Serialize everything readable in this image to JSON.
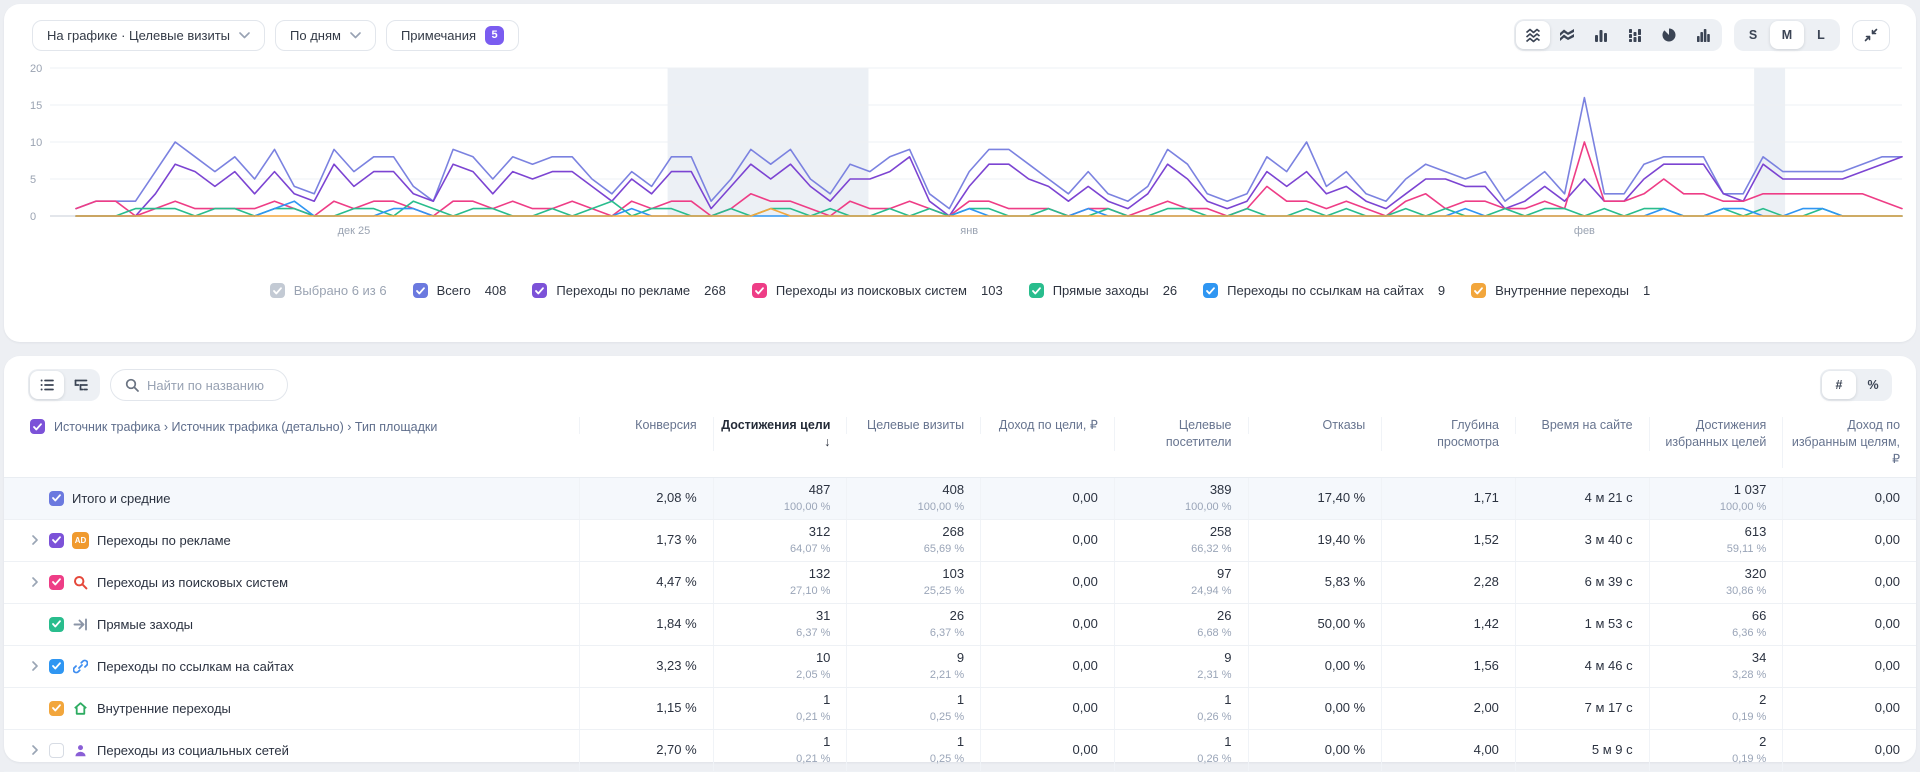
{
  "chart_controls": {
    "metric_dropdown": "На графике · Целевые визиты",
    "granularity_dropdown": "По дням",
    "notes_label": "Примечания",
    "notes_count": "5",
    "sizes": [
      "S",
      "M",
      "L"
    ],
    "size_selected": "M"
  },
  "chart_data": {
    "type": "line",
    "ylim": [
      0,
      20
    ],
    "yticks": [
      0,
      5,
      10,
      15,
      20
    ],
    "x_tick_labels": [
      {
        "label": "дек 25",
        "index": 14
      },
      {
        "label": "янв",
        "index": 45
      },
      {
        "label": "фев",
        "index": 76
      }
    ],
    "highlight_bands": [
      {
        "from_frac": 0.324,
        "to_frac": 0.434
      },
      {
        "from_frac": 0.919,
        "to_frac": 0.936
      }
    ],
    "series": [
      {
        "name": "Всего",
        "color": "#7b82e0",
        "values": [
          1,
          2,
          2,
          2,
          6,
          10,
          8,
          6,
          8,
          5,
          9,
          4,
          3,
          9,
          6,
          8,
          8,
          4,
          2,
          9,
          8,
          5,
          8,
          7,
          8,
          8,
          5,
          3,
          6,
          4,
          8,
          8,
          2,
          5,
          9,
          7,
          9,
          5,
          3,
          7,
          6,
          8,
          9,
          3,
          1,
          6,
          9,
          9,
          7,
          5,
          3,
          6,
          3,
          2,
          4,
          9,
          7,
          3,
          2,
          3,
          8,
          6,
          10,
          4,
          6,
          3,
          2,
          5,
          7,
          6,
          5,
          6,
          2,
          4,
          6,
          3,
          16,
          3,
          3,
          7,
          8,
          8,
          8,
          3,
          3,
          8,
          6,
          6,
          6,
          6,
          7,
          8,
          8
        ]
      },
      {
        "name": "Переходы по рекламе",
        "color": "#7c44d2",
        "values": [
          0,
          0,
          0,
          0,
          3,
          7,
          6,
          4,
          6,
          3,
          6,
          3,
          2,
          7,
          4,
          6,
          6,
          3,
          2,
          7,
          6,
          3,
          6,
          5,
          6,
          6,
          4,
          2,
          5,
          3,
          6,
          6,
          1,
          4,
          7,
          5,
          7,
          4,
          2,
          5,
          5,
          6,
          8,
          2,
          0,
          4,
          7,
          7,
          5,
          4,
          2,
          4,
          2,
          1,
          3,
          7,
          5,
          2,
          1,
          2,
          6,
          4,
          6,
          3,
          4,
          2,
          1,
          3,
          5,
          5,
          4,
          4,
          1,
          2,
          4,
          2,
          5,
          2,
          2,
          5,
          7,
          7,
          7,
          3,
          2,
          7,
          5,
          5,
          5,
          5,
          6,
          7,
          8
        ]
      },
      {
        "name": "Переходы из поисковых систем",
        "color": "#ee3d86",
        "values": [
          1,
          2,
          2,
          0,
          1,
          2,
          1,
          1,
          1,
          1,
          2,
          1,
          0,
          2,
          1,
          2,
          2,
          1,
          0,
          2,
          2,
          1,
          2,
          1,
          1,
          2,
          1,
          0,
          2,
          1,
          2,
          2,
          0,
          1,
          3,
          2,
          2,
          1,
          0,
          2,
          1,
          1,
          2,
          1,
          0,
          2,
          2,
          1,
          1,
          1,
          0,
          1,
          1,
          0,
          1,
          2,
          1,
          1,
          0,
          1,
          4,
          2,
          2,
          1,
          2,
          1,
          0,
          2,
          3,
          1,
          2,
          2,
          1,
          1,
          2,
          1,
          10,
          2,
          2,
          3,
          5,
          3,
          3,
          2,
          2,
          3,
          3,
          3,
          3,
          3,
          3,
          2,
          1
        ]
      },
      {
        "name": "Прямые заходы",
        "color": "#29bd8d",
        "values": [
          0,
          0,
          0,
          1,
          1,
          1,
          0,
          1,
          1,
          0,
          1,
          1,
          0,
          0,
          1,
          1,
          0,
          2,
          1,
          0,
          1,
          1,
          0,
          0,
          1,
          0,
          1,
          2,
          0,
          1,
          1,
          0,
          0,
          1,
          0,
          1,
          1,
          0,
          1,
          0,
          0,
          1,
          0,
          1,
          0,
          1,
          1,
          0,
          0,
          1,
          0,
          0,
          1,
          0,
          0,
          1,
          1,
          0,
          0,
          1,
          0,
          0,
          1,
          0,
          1,
          0,
          0,
          1,
          0,
          1,
          0,
          0,
          1,
          0,
          1,
          1,
          0,
          1,
          0,
          1,
          1,
          0,
          0,
          1,
          0,
          1,
          0,
          0,
          1,
          0,
          0,
          0,
          0
        ]
      },
      {
        "name": "Переходы по ссылкам на сайтах",
        "color": "#2f96f2",
        "values": [
          0,
          0,
          0,
          0,
          0,
          0,
          0,
          0,
          0,
          0,
          1,
          2,
          0,
          0,
          0,
          0,
          1,
          1,
          0,
          0,
          0,
          0,
          0,
          0,
          0,
          0,
          0,
          0,
          1,
          0,
          0,
          0,
          0,
          0,
          0,
          0,
          0,
          0,
          0,
          0,
          0,
          0,
          0,
          0,
          0,
          1,
          0,
          0,
          0,
          0,
          0,
          1,
          0,
          0,
          0,
          0,
          0,
          0,
          0,
          0,
          0,
          0,
          0,
          0,
          0,
          0,
          0,
          0,
          0,
          0,
          1,
          0,
          0,
          0,
          0,
          0,
          0,
          0,
          0,
          0,
          1,
          0,
          0,
          1,
          1,
          0,
          0,
          1,
          1,
          0,
          0,
          0,
          0
        ]
      },
      {
        "name": "Внутренние переходы",
        "color": "#f2a63c",
        "values": [
          0,
          0,
          0,
          0,
          0,
          0,
          0,
          0,
          0,
          0,
          0,
          0,
          0,
          0,
          0,
          0,
          0,
          0,
          0,
          0,
          0,
          0,
          0,
          0,
          0,
          0,
          0,
          0,
          0,
          0,
          0,
          0,
          0,
          0,
          0,
          1,
          0,
          0,
          0,
          0,
          0,
          0,
          0,
          0,
          0,
          0,
          0,
          0,
          0,
          0,
          0,
          0,
          0,
          0,
          0,
          0,
          0,
          0,
          0,
          0,
          0,
          0,
          0,
          0,
          0,
          0,
          0,
          0,
          0,
          0,
          0,
          0,
          0,
          0,
          0,
          0,
          0,
          0,
          0,
          0,
          0,
          0,
          0,
          0,
          0,
          0,
          0,
          0,
          0,
          0,
          0,
          0,
          0
        ]
      }
    ]
  },
  "legend": {
    "selected_label": "Выбрано 6 из 6",
    "items": [
      {
        "label": "Всего",
        "value": "408",
        "color": "#6b79df"
      },
      {
        "label": "Переходы по рекламе",
        "value": "268",
        "color": "#7c52d8"
      },
      {
        "label": "Переходы из поисковых систем",
        "value": "103",
        "color": "#ee3d86"
      },
      {
        "label": "Прямые заходы",
        "value": "26",
        "color": "#29bd8d"
      },
      {
        "label": "Переходы по ссылкам на сайтах",
        "value": "9",
        "color": "#2f96f2"
      },
      {
        "label": "Внутренние переходы",
        "value": "1",
        "color": "#f2a63c"
      }
    ]
  },
  "table": {
    "search_placeholder": "Найти по названию",
    "number_toggle": [
      "#",
      "%"
    ],
    "dimension_header": "Источник трафика › Источник трафика (детально) › Тип площадки",
    "columns": [
      {
        "label": "Конверсия",
        "sorted": false
      },
      {
        "label": "Достижения цели",
        "sorted": true
      },
      {
        "label": "Целевые визиты",
        "sorted": false
      },
      {
        "label": "Доход по цели, ₽",
        "sorted": false
      },
      {
        "label": "Целевые посетители",
        "sorted": false
      },
      {
        "label": "Отказы",
        "sorted": false
      },
      {
        "label": "Глубина просмотра",
        "sorted": false
      },
      {
        "label": "Время на сайте",
        "sorted": false
      },
      {
        "label": "Достижения избранных целей",
        "sorted": false
      },
      {
        "label": "Доход по избранным целям, ₽",
        "sorted": false
      }
    ],
    "rows": [
      {
        "label": "Итого и средние",
        "checked": true,
        "checkbox_color": "#6b79df",
        "expandable": false,
        "icon": null,
        "highlight": true,
        "cells": [
          [
            "2,08 %"
          ],
          [
            "487",
            "100,00 %"
          ],
          [
            "408",
            "100,00 %"
          ],
          [
            "0,00"
          ],
          [
            "389",
            "100,00 %"
          ],
          [
            "17,40 %"
          ],
          [
            "1,71"
          ],
          [
            "4 м 21 с"
          ],
          [
            "1 037",
            "100,00 %"
          ],
          [
            "0,00"
          ]
        ]
      },
      {
        "label": "Переходы по рекламе",
        "checked": true,
        "checkbox_color": "#7c52d8",
        "expandable": true,
        "icon": "ad",
        "highlight": false,
        "cells": [
          [
            "1,73 %"
          ],
          [
            "312",
            "64,07 %"
          ],
          [
            "268",
            "65,69 %"
          ],
          [
            "0,00"
          ],
          [
            "258",
            "66,32 %"
          ],
          [
            "19,40 %"
          ],
          [
            "1,52"
          ],
          [
            "3 м 40 с"
          ],
          [
            "613",
            "59,11 %"
          ],
          [
            "0,00"
          ]
        ]
      },
      {
        "label": "Переходы из поисковых систем",
        "checked": true,
        "checkbox_color": "#ee3d86",
        "expandable": true,
        "icon": "search",
        "highlight": false,
        "cells": [
          [
            "4,47 %"
          ],
          [
            "132",
            "27,10 %"
          ],
          [
            "103",
            "25,25 %"
          ],
          [
            "0,00"
          ],
          [
            "97",
            "24,94 %"
          ],
          [
            "5,83 %"
          ],
          [
            "2,28"
          ],
          [
            "6 м 39 с"
          ],
          [
            "320",
            "30,86 %"
          ],
          [
            "0,00"
          ]
        ]
      },
      {
        "label": "Прямые заходы",
        "checked": true,
        "checkbox_color": "#29bd8d",
        "expandable": false,
        "icon": "direct",
        "highlight": false,
        "cells": [
          [
            "1,84 %"
          ],
          [
            "31",
            "6,37 %"
          ],
          [
            "26",
            "6,37 %"
          ],
          [
            "0,00"
          ],
          [
            "26",
            "6,68 %"
          ],
          [
            "50,00 %"
          ],
          [
            "1,42"
          ],
          [
            "1 м 53 с"
          ],
          [
            "66",
            "6,36 %"
          ],
          [
            "0,00"
          ]
        ]
      },
      {
        "label": "Переходы по ссылкам на сайтах",
        "checked": true,
        "checkbox_color": "#2f96f2",
        "expandable": true,
        "icon": "link",
        "highlight": false,
        "cells": [
          [
            "3,23 %"
          ],
          [
            "10",
            "2,05 %"
          ],
          [
            "9",
            "2,21 %"
          ],
          [
            "0,00"
          ],
          [
            "9",
            "2,31 %"
          ],
          [
            "0,00 %"
          ],
          [
            "1,56"
          ],
          [
            "4 м 46 с"
          ],
          [
            "34",
            "3,28 %"
          ],
          [
            "0,00"
          ]
        ]
      },
      {
        "label": "Внутренние переходы",
        "checked": true,
        "checkbox_color": "#f2a63c",
        "expandable": false,
        "icon": "home",
        "highlight": false,
        "cells": [
          [
            "1,15 %"
          ],
          [
            "1",
            "0,21 %"
          ],
          [
            "1",
            "0,25 %"
          ],
          [
            "0,00"
          ],
          [
            "1",
            "0,26 %"
          ],
          [
            "0,00 %"
          ],
          [
            "2,00"
          ],
          [
            "7 м 17 с"
          ],
          [
            "2",
            "0,19 %"
          ],
          [
            "0,00"
          ]
        ]
      },
      {
        "label": "Переходы из социальных сетей",
        "checked": false,
        "checkbox_color": null,
        "expandable": true,
        "icon": "person",
        "highlight": false,
        "cells": [
          [
            "2,70 %"
          ],
          [
            "1",
            "0,21 %"
          ],
          [
            "1",
            "0,25 %"
          ],
          [
            "0,00"
          ],
          [
            "1",
            "0,26 %"
          ],
          [
            "0,00 %"
          ],
          [
            "4,00"
          ],
          [
            "5 м 9 с"
          ],
          [
            "2",
            "0,19 %"
          ],
          [
            "0,00"
          ]
        ]
      }
    ]
  }
}
